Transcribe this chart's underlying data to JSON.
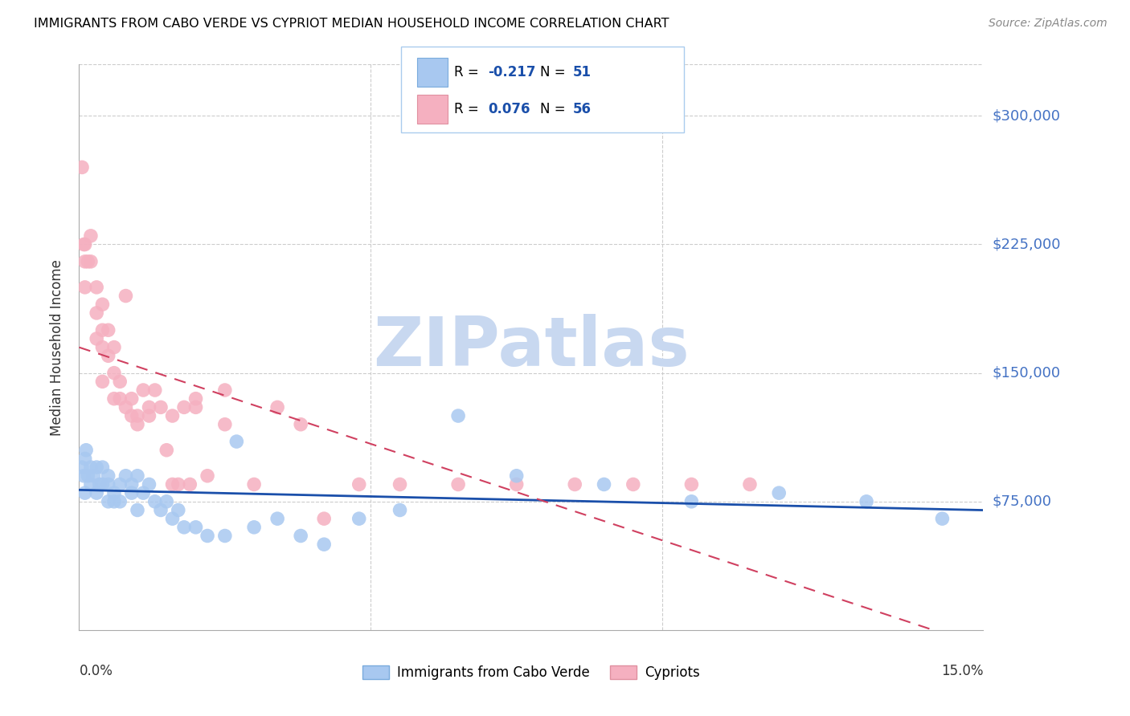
{
  "title": "IMMIGRANTS FROM CABO VERDE VS CYPRIOT MEDIAN HOUSEHOLD INCOME CORRELATION CHART",
  "source": "Source: ZipAtlas.com",
  "ylabel": "Median Household Income",
  "ymin": 0,
  "ymax": 330000,
  "xmin": 0.0,
  "xmax": 0.155,
  "blue_scatter_color": "#A8C8F0",
  "pink_scatter_color": "#F5B0C0",
  "blue_line_color": "#1A4FAA",
  "pink_line_color": "#D04060",
  "grid_color": "#CCCCCC",
  "right_label_color": "#4472C4",
  "legend_text_color": "#1A4FAA",
  "watermark_color": "#C8D8F0",
  "cabo_verde_x": [
    0.0005,
    0.0008,
    0.001,
    0.001,
    0.0012,
    0.0015,
    0.002,
    0.002,
    0.0025,
    0.003,
    0.003,
    0.0035,
    0.004,
    0.004,
    0.005,
    0.005,
    0.005,
    0.006,
    0.006,
    0.007,
    0.007,
    0.008,
    0.009,
    0.009,
    0.01,
    0.01,
    0.011,
    0.012,
    0.013,
    0.014,
    0.015,
    0.016,
    0.017,
    0.018,
    0.02,
    0.022,
    0.025,
    0.027,
    0.03,
    0.034,
    0.038,
    0.042,
    0.048,
    0.055,
    0.065,
    0.075,
    0.09,
    0.105,
    0.12,
    0.135,
    0.148
  ],
  "cabo_verde_y": [
    95000,
    90000,
    100000,
    80000,
    105000,
    90000,
    95000,
    85000,
    90000,
    95000,
    80000,
    85000,
    95000,
    85000,
    90000,
    75000,
    85000,
    80000,
    75000,
    85000,
    75000,
    90000,
    85000,
    80000,
    90000,
    70000,
    80000,
    85000,
    75000,
    70000,
    75000,
    65000,
    70000,
    60000,
    60000,
    55000,
    55000,
    110000,
    60000,
    65000,
    55000,
    50000,
    65000,
    70000,
    125000,
    90000,
    85000,
    75000,
    80000,
    75000,
    65000
  ],
  "cypriot_x": [
    0.0005,
    0.0008,
    0.001,
    0.001,
    0.001,
    0.0015,
    0.002,
    0.002,
    0.003,
    0.003,
    0.003,
    0.004,
    0.004,
    0.004,
    0.005,
    0.005,
    0.006,
    0.006,
    0.006,
    0.007,
    0.007,
    0.008,
    0.009,
    0.009,
    0.01,
    0.01,
    0.011,
    0.012,
    0.013,
    0.014,
    0.015,
    0.016,
    0.017,
    0.018,
    0.019,
    0.02,
    0.022,
    0.025,
    0.03,
    0.034,
    0.038,
    0.042,
    0.048,
    0.055,
    0.065,
    0.075,
    0.085,
    0.095,
    0.105,
    0.115,
    0.025,
    0.02,
    0.016,
    0.012,
    0.008,
    0.004
  ],
  "cypriot_y": [
    270000,
    225000,
    225000,
    215000,
    200000,
    215000,
    230000,
    215000,
    200000,
    185000,
    170000,
    190000,
    175000,
    165000,
    175000,
    160000,
    165000,
    150000,
    135000,
    145000,
    135000,
    195000,
    135000,
    125000,
    125000,
    120000,
    140000,
    125000,
    140000,
    130000,
    105000,
    85000,
    85000,
    130000,
    85000,
    135000,
    90000,
    120000,
    85000,
    130000,
    120000,
    65000,
    85000,
    85000,
    85000,
    85000,
    85000,
    85000,
    85000,
    85000,
    140000,
    130000,
    125000,
    130000,
    130000,
    145000
  ]
}
